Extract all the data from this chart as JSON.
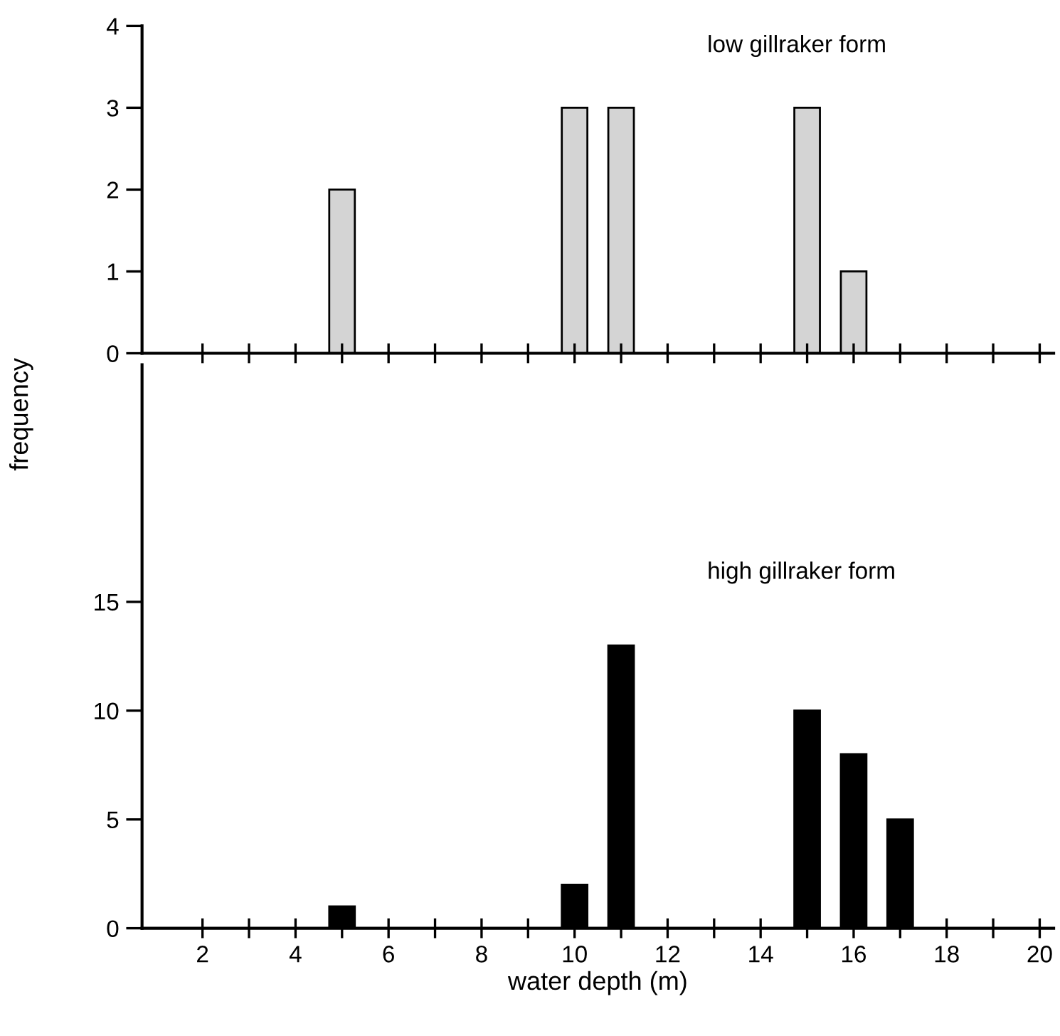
{
  "chart_data": [
    {
      "type": "bar",
      "x": [
        5,
        10,
        11,
        15,
        16
      ],
      "values": [
        2,
        3,
        3,
        3,
        1
      ],
      "color": "#d4d4d4",
      "ylabel": "frequency",
      "annotations": [
        "low gillraker form"
      ],
      "xlim": [
        0.7,
        20.3
      ],
      "ylim": [
        0,
        4
      ],
      "yticks": [
        0,
        1,
        2,
        3,
        4
      ],
      "xticks": [
        {
          "value": 2,
          "label": null
        },
        {
          "value": 3,
          "label": null
        },
        {
          "value": 4,
          "label": null
        },
        {
          "value": 5,
          "label": null
        },
        {
          "value": 6,
          "label": null
        },
        {
          "value": 7,
          "label": null
        },
        {
          "value": 8,
          "label": null
        },
        {
          "value": 9,
          "label": null
        },
        {
          "value": 10,
          "label": null
        },
        {
          "value": 11,
          "label": null
        },
        {
          "value": 12,
          "label": null
        },
        {
          "value": 13,
          "label": null
        },
        {
          "value": 14,
          "label": null
        },
        {
          "value": 15,
          "label": null
        },
        {
          "value": 16,
          "label": null
        },
        {
          "value": 17,
          "label": null
        },
        {
          "value": 18,
          "label": null
        },
        {
          "value": 19,
          "label": null
        },
        {
          "value": 20,
          "label": null
        }
      ],
      "tick_labels": "y",
      "grid": false,
      "legend": false
    },
    {
      "type": "bar",
      "x": [
        5,
        10,
        11,
        15,
        16,
        17
      ],
      "values": [
        1,
        2,
        13,
        10,
        8,
        5
      ],
      "color": "#000000",
      "xlabel": "water depth (m)",
      "annotations": [
        "high gillraker form"
      ],
      "xlim": [
        0.7,
        20.3
      ],
      "ylim": [
        0,
        25.9
      ],
      "yticks": [
        0,
        5,
        10,
        15
      ],
      "xticks": [
        2,
        {
          "value": 3,
          "label": null
        },
        4,
        {
          "value": 5,
          "label": null
        },
        6,
        {
          "value": 7,
          "label": null
        },
        8,
        {
          "value": 9,
          "label": null
        },
        10,
        {
          "value": 11,
          "label": null
        },
        12,
        {
          "value": 13,
          "label": null
        },
        14,
        {
          "value": 15,
          "label": null
        },
        16,
        {
          "value": 17,
          "label": null
        },
        18,
        {
          "value": 19,
          "label": null
        },
        20
      ],
      "grid": false,
      "legend": false
    }
  ]
}
